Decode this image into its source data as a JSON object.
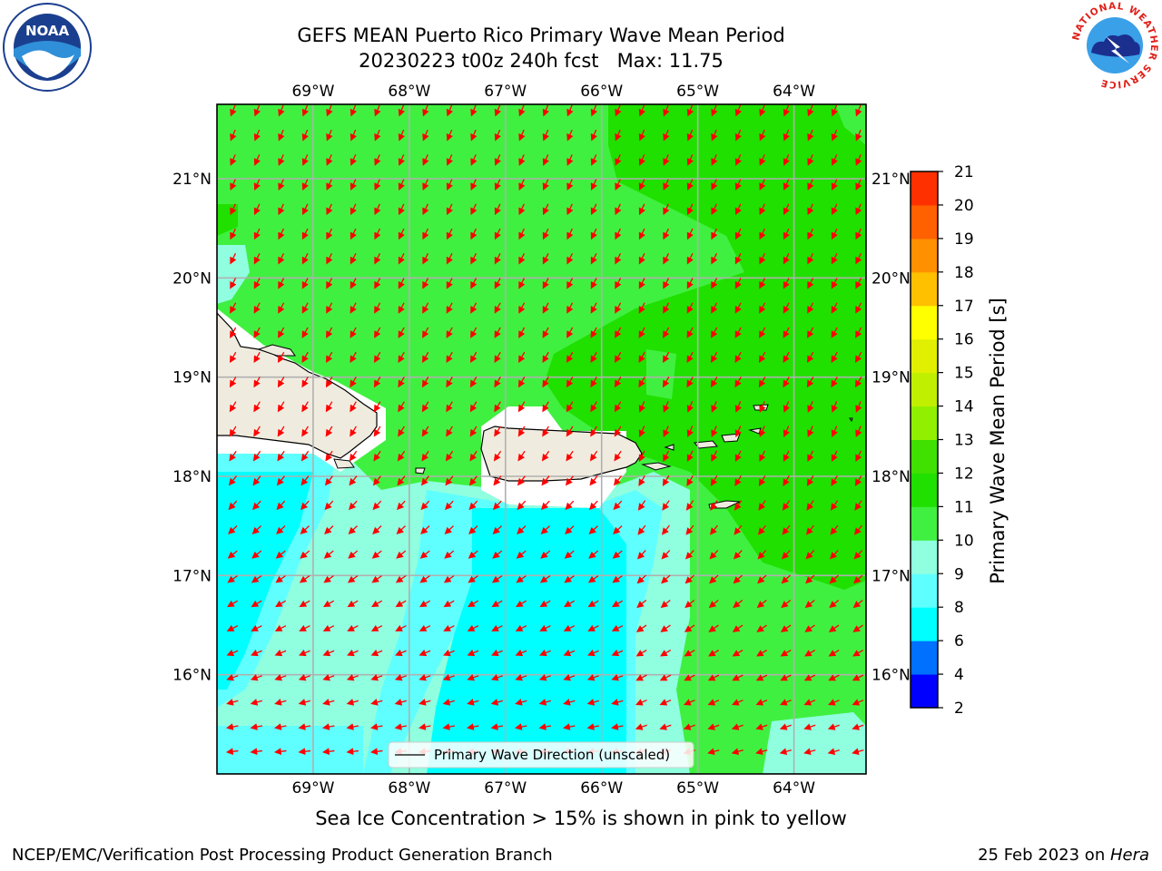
{
  "header": {
    "title_line1": "GEFS MEAN Puerto Rico Primary Wave Mean Period",
    "title_line2": "20230223 t00z 240h fcst   Max: 11.75"
  },
  "logos": {
    "left": {
      "text": "NOAA",
      "ring_text": "NATIONAL OCEANIC AND ATMOSPHERIC ADMINISTRATION · U.S. DEPARTMENT OF COMMERCE"
    },
    "right": {
      "ring_text": "NATIONAL WEATHER SERVICE"
    }
  },
  "map": {
    "lon_labels": [
      "69°W",
      "68°W",
      "67°W",
      "66°W",
      "65°W",
      "64°W"
    ],
    "lat_labels": [
      "21°N",
      "20°N",
      "19°N",
      "18°N",
      "17°N",
      "16°N"
    ],
    "lon_values": [
      -69,
      -68,
      -67,
      -66,
      -65,
      -64
    ],
    "lat_values": [
      21,
      20,
      19,
      18,
      17,
      16
    ],
    "extent": {
      "lon_min": -70.0,
      "lon_max": -63.25,
      "lat_min": 15.0,
      "lat_max": 21.75
    },
    "legend_label": "Primary Wave Direction (unscaled)",
    "arrow_color": "#ff0000"
  },
  "colorbar": {
    "label": "Primary Wave Mean Period [s]",
    "ticks": [
      "2",
      "4",
      "6",
      "8",
      "9",
      "10",
      "11",
      "12",
      "13",
      "14",
      "15",
      "16",
      "17",
      "18",
      "19",
      "20",
      "21"
    ],
    "colors": [
      "#0000ff",
      "#0070ff",
      "#00ffff",
      "#60ffff",
      "#90ffe0",
      "#40f040",
      "#20e000",
      "#40e000",
      "#90f000",
      "#c0f000",
      "#e0f000",
      "#ffff00",
      "#ffc000",
      "#ff9000",
      "#ff6000",
      "#ff3000",
      "#ff0000"
    ]
  },
  "note": "Sea Ice Concentration > 15% is shown in pink to yellow",
  "footer": {
    "left": "NCEP/EMC/Verification Post Processing Product Generation Branch",
    "date": "25 Feb 2023 on ",
    "machine": "Hera"
  }
}
